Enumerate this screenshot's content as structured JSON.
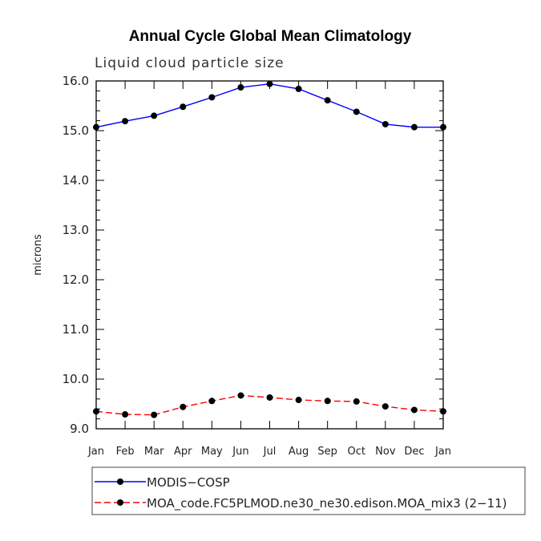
{
  "chart_data": {
    "type": "line",
    "title": "Annual Cycle Global Mean Climatology",
    "subtitle": "Liquid cloud particle size",
    "xlabel": "",
    "ylabel": "microns",
    "ylim": [
      9.0,
      16.0
    ],
    "yticks": [
      "9.0",
      "10.0",
      "11.0",
      "12.0",
      "13.0",
      "14.0",
      "15.0",
      "16.0"
    ],
    "categories": [
      "Jan",
      "Feb",
      "Mar",
      "Apr",
      "May",
      "Jun",
      "Jul",
      "Aug",
      "Sep",
      "Oct",
      "Nov",
      "Dec",
      "Jan"
    ],
    "series": [
      {
        "name": "MODIS−COSP",
        "color": "#0000ff",
        "style": "solid",
        "values": [
          15.07,
          15.19,
          15.3,
          15.48,
          15.67,
          15.87,
          15.94,
          15.84,
          15.61,
          15.38,
          15.13,
          15.07,
          15.07
        ]
      },
      {
        "name": "MOA_code.FC5PLMOD.ne30_ne30.edison.MOA_mix3 (2−11)",
        "color": "#ff0000",
        "style": "dashed",
        "values": [
          9.35,
          9.29,
          9.28,
          9.44,
          9.56,
          9.67,
          9.63,
          9.58,
          9.56,
          9.55,
          9.45,
          9.38,
          9.35
        ]
      }
    ],
    "legend_position": "bottom-left"
  }
}
